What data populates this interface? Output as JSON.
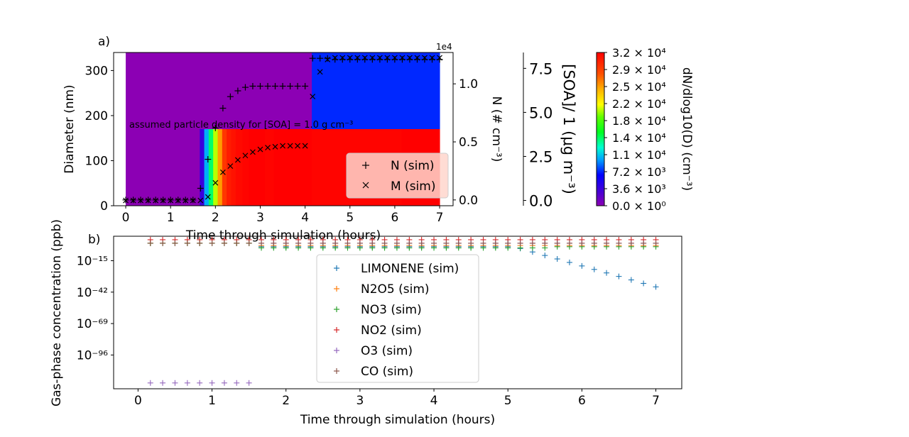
{
  "chart_data": [
    {
      "type": "heatmap",
      "panel_label": "a)",
      "xlabel": "Time through simulation (hours)",
      "xlim": [
        -0.27,
        7.3
      ],
      "xticks": [
        "0",
        "1",
        "2",
        "3",
        "4",
        "5",
        "6",
        "7"
      ],
      "left_axis": {
        "label": "Diameter (nm)",
        "ylim": [
          0,
          340
        ],
        "ticks": [
          "0",
          "100",
          "200",
          "300"
        ]
      },
      "right_axis_N": {
        "label": "N (# cm⁻³)",
        "offset_text": "1e4",
        "ticks": [
          "0.0",
          "0.5",
          "1.0"
        ],
        "ylim_1e4": [
          -0.05,
          1.27
        ]
      },
      "right_axis_SOA": {
        "label": "[SOA]/ 1 (μg m⁻³)",
        "ticks": [
          "0.0",
          "2.5",
          "5.0",
          "7.5"
        ],
        "ylim": [
          -0.3,
          8.4
        ]
      },
      "colorbar": {
        "label": "dN/dlog10(D) (cm⁻³)",
        "ticks": [
          "3.2 × 10⁴",
          "2.9 × 10⁴",
          "2.5 × 10⁴",
          "2.2 × 10⁴",
          "1.8 × 10⁴",
          "1.4 × 10⁴",
          "1.1 × 10⁴",
          "7.2 × 10³",
          "3.6 × 10³",
          "0.0 × 10⁰"
        ],
        "range": [
          0,
          32000
        ]
      },
      "annotation": "assumed particle density for [SOA] = 1.0 g cm⁻³",
      "heatmap_bins": {
        "time_edges": [
          0,
          1.65,
          1.75,
          1.85,
          1.95,
          2.05,
          2.15,
          2.25,
          2.35,
          2.45,
          2.6,
          2.75,
          2.9,
          3.1,
          3.3,
          3.5,
          4.15,
          6.15,
          7.0
        ],
        "diameter_edges_nm": [
          0,
          170,
          340
        ],
        "lower_band_level": [
          0,
          3600,
          10000,
          14000,
          20000,
          25000,
          29000,
          30500,
          31000,
          31500,
          31800,
          32000,
          32000,
          31800,
          32000,
          32000,
          31800,
          32000
        ],
        "upper_band_level": [
          0,
          0,
          0,
          0,
          0,
          0,
          0,
          0,
          0,
          0,
          0,
          0,
          0,
          0,
          0,
          0,
          7200,
          7200
        ]
      },
      "series": [
        {
          "name": "N (sim)",
          "marker": "+",
          "axis": "N_1e4",
          "x": [
            0,
            0.167,
            0.333,
            0.5,
            0.667,
            0.833,
            1,
            1.167,
            1.333,
            1.5,
            1.667,
            1.833,
            2,
            2.167,
            2.333,
            2.5,
            2.667,
            2.833,
            3,
            3.167,
            3.333,
            3.5,
            3.667,
            3.833,
            4,
            4.167,
            4.333,
            4.5,
            4.667,
            4.833,
            5,
            5.167,
            5.333,
            5.5,
            5.667,
            5.833,
            6,
            6.167,
            6.333,
            6.5,
            6.667,
            6.833,
            7
          ],
          "values": [
            0,
            0,
            0,
            0,
            0,
            0,
            0,
            0,
            0,
            0,
            0.1,
            0.35,
            0.62,
            0.79,
            0.89,
            0.94,
            0.97,
            0.98,
            0.98,
            0.98,
            0.98,
            0.98,
            0.98,
            0.98,
            0.98,
            1.22,
            1.22,
            1.22,
            1.21,
            1.21,
            1.21,
            1.21,
            1.21,
            1.21,
            1.21,
            1.21,
            1.21,
            1.21,
            1.21,
            1.21,
            1.21,
            1.21,
            1.21
          ]
        },
        {
          "name": "M (sim)",
          "marker": "x",
          "axis": "SOA",
          "x": [
            0,
            0.167,
            0.333,
            0.5,
            0.667,
            0.833,
            1,
            1.167,
            1.333,
            1.5,
            1.667,
            1.833,
            2,
            2.167,
            2.333,
            2.5,
            2.667,
            2.833,
            3,
            3.167,
            3.333,
            3.5,
            3.667,
            3.833,
            4,
            4.167,
            4.333,
            4.5,
            4.667,
            4.833,
            5,
            5.167,
            5.333,
            5.5,
            5.667,
            5.833,
            6,
            6.167,
            6.333,
            6.5,
            6.667,
            6.833,
            7
          ],
          "values": [
            0,
            0,
            0,
            0,
            0,
            0,
            0,
            0,
            0,
            0,
            0,
            0.2,
            1.0,
            1.6,
            1.95,
            2.3,
            2.55,
            2.75,
            2.9,
            3.0,
            3.05,
            3.1,
            3.1,
            3.1,
            3.1,
            5.9,
            7.3,
            8.0,
            8.1,
            8.1,
            8.1,
            8.1,
            8.1,
            8.1,
            8.1,
            8.1,
            8.1,
            8.1,
            8.1,
            8.1,
            8.1,
            8.1,
            8.1
          ]
        }
      ],
      "legend": {
        "placement": "lower right",
        "entries": [
          "N (sim)",
          "M (sim)"
        ]
      }
    },
    {
      "type": "scatter",
      "panel_label": "b)",
      "xlabel": "Time through simulation (hours)",
      "ylabel": "Gas-phase concentration (ppb)",
      "xlim": [
        -0.33,
        7.35
      ],
      "xticks": [
        "0",
        "1",
        "2",
        "3",
        "4",
        "5",
        "6",
        "7"
      ],
      "yscale": "log",
      "yticks": [
        "10⁻¹⁵",
        "10⁻⁴²",
        "10⁻⁶⁹",
        "10⁻⁹⁶"
      ],
      "ylim_log10": [
        -125,
        6
      ],
      "legend": {
        "placement": "center",
        "entries": [
          "LIMONENE (sim)",
          "N2O5 (sim)",
          "NO3 (sim)",
          "NO2 (sim)",
          "O3 (sim)",
          "CO (sim)"
        ]
      },
      "series": [
        {
          "name": "LIMONENE (sim)",
          "color": "#1f77b4",
          "x": [
            0.167,
            0.333,
            0.5,
            0.667,
            0.833,
            1,
            1.167,
            1.333,
            1.5,
            1.667,
            1.833,
            2,
            2.167,
            2.333,
            2.5,
            2.667,
            2.833,
            3,
            3.167,
            3.333,
            3.5,
            3.667,
            3.833,
            4,
            4.167,
            4.333,
            4.5,
            4.667,
            4.833,
            5,
            5.167,
            5.333,
            5.5,
            5.667,
            5.833,
            6,
            6.167,
            6.333,
            6.5,
            6.667,
            6.833,
            7
          ],
          "log10_values": [
            0,
            0,
            0,
            0,
            0,
            0,
            0,
            0,
            0,
            -3,
            -3,
            -3,
            -3,
            -3,
            -3,
            -3,
            -3,
            -3,
            -3,
            -3,
            -3,
            -3,
            -3,
            -3,
            -3,
            -3,
            -3,
            -3,
            -3,
            -3,
            -4.5,
            -7.5,
            -10.5,
            -13.5,
            -16.5,
            -19.5,
            -22.5,
            -25.5,
            -28.5,
            -31.5,
            -34.5,
            -37.5
          ]
        },
        {
          "name": "N2O5 (sim)",
          "color": "#ff7f0e",
          "x": [
            0.167,
            0.333,
            0.5,
            0.667,
            0.833,
            1,
            1.167,
            1.333,
            1.5,
            1.667,
            1.833,
            2,
            2.167,
            2.333,
            2.5,
            2.667,
            2.833,
            3,
            3.167,
            3.333,
            3.5,
            3.667,
            3.833,
            4,
            4.167,
            4.333,
            4.5,
            4.667,
            4.833,
            5,
            5.167,
            5.333,
            5.5,
            5.667,
            5.833,
            6,
            6.167,
            6.333,
            6.5,
            6.667,
            6.833,
            7
          ],
          "log10_values": [
            0,
            0,
            0,
            0,
            0,
            0,
            0,
            0,
            0,
            -2,
            -2,
            -2,
            -2,
            -2,
            -2,
            -2,
            -2,
            -2,
            -2,
            -2,
            -2,
            -2,
            -2,
            -2,
            -2,
            -2,
            -2,
            -2,
            -2,
            -2,
            -2,
            -2,
            -2,
            -2,
            -2,
            -2,
            -2,
            -2,
            -2,
            -2,
            -2,
            -2
          ]
        },
        {
          "name": "NO3 (sim)",
          "color": "#2ca02c",
          "x": [
            0.167,
            0.333,
            0.5,
            0.667,
            0.833,
            1,
            1.167,
            1.333,
            1.5,
            1.667,
            1.833,
            2,
            2.167,
            2.333,
            2.5,
            2.667,
            2.833,
            3,
            3.167,
            3.333,
            3.5,
            3.667,
            3.833,
            4,
            4.167,
            4.333,
            4.5,
            4.667,
            4.833,
            5,
            5.167,
            5.333,
            5.5,
            5.667,
            5.833,
            6,
            6.167,
            6.333,
            6.5,
            6.667,
            6.833,
            7
          ],
          "log10_values": [
            0,
            0,
            0,
            0,
            0,
            0,
            0,
            0,
            0,
            -4,
            -4,
            -4,
            -4,
            -4,
            -4,
            -4,
            -4,
            -4,
            -4,
            -4,
            -4,
            -4,
            -4,
            -4,
            -4,
            -4,
            -4,
            -4,
            -4,
            -4,
            -4,
            -4,
            -4,
            -3,
            -3,
            -3,
            -3,
            -3,
            -3,
            -3,
            -3,
            -3
          ]
        },
        {
          "name": "NO2 (sim)",
          "color": "#d62728",
          "x": [
            0.167,
            0.333,
            0.5,
            0.667,
            0.833,
            1,
            1.167,
            1.333,
            1.5,
            1.667,
            1.833,
            2,
            2.167,
            2.333,
            2.5,
            2.667,
            2.833,
            3,
            3.167,
            3.333,
            3.5,
            3.667,
            3.833,
            4,
            4.167,
            4.333,
            4.5,
            4.667,
            4.833,
            5,
            5.167,
            5.333,
            5.5,
            5.667,
            5.833,
            6,
            6.167,
            6.333,
            6.5,
            6.667,
            6.833,
            7
          ],
          "log10_values": [
            3,
            3,
            3,
            3,
            3,
            3,
            3,
            3,
            3,
            3,
            3,
            3,
            3,
            3,
            3,
            3,
            3,
            3,
            3,
            3,
            3,
            3,
            3,
            3,
            3,
            3,
            3,
            3,
            3,
            3,
            3,
            3,
            3,
            3,
            3,
            3,
            3,
            3,
            3,
            3,
            3,
            3
          ]
        },
        {
          "name": "O3 (sim)",
          "color": "#9467bd",
          "x": [
            0.167,
            0.333,
            0.5,
            0.667,
            0.833,
            1,
            1.167,
            1.333,
            1.5,
            1.667,
            1.833,
            2,
            2.167,
            2.333,
            2.5,
            2.667,
            2.833,
            3,
            3.167,
            3.333,
            3.5,
            3.667,
            3.833,
            4,
            4.167,
            4.333,
            4.5,
            4.667,
            4.833,
            5,
            5.167,
            5.333,
            5.5,
            5.667,
            5.833,
            6,
            6.167,
            6.333,
            6.5,
            6.667,
            6.833,
            7
          ],
          "log10_values": [
            -120,
            -120,
            -120,
            -120,
            -120,
            -120,
            -120,
            -120,
            -120,
            0,
            0,
            0,
            0,
            0,
            0,
            0,
            0,
            0,
            0,
            0,
            0,
            0,
            0,
            0,
            0,
            0,
            0,
            0,
            0,
            0,
            0,
            0,
            0,
            0,
            0,
            0,
            0,
            0,
            0,
            0,
            0,
            0
          ]
        },
        {
          "name": "CO (sim)",
          "color": "#8c564b",
          "x": [
            0.167,
            0.333,
            0.5,
            0.667,
            0.833,
            1,
            1.167,
            1.333,
            1.5,
            1.667,
            1.833,
            2,
            2.167,
            2.333,
            2.5,
            2.667,
            2.833,
            3,
            3.167,
            3.333,
            3.5,
            3.667,
            3.833,
            4,
            4.167,
            4.333,
            4.5,
            4.667,
            4.833,
            5,
            5.167,
            5.333,
            5.5,
            5.667,
            5.833,
            6,
            6.167,
            6.333,
            6.5,
            6.667,
            6.833,
            7
          ],
          "log10_values": [
            0,
            0,
            0,
            0,
            0,
            0,
            0,
            0,
            0,
            0,
            0,
            0,
            0,
            0,
            0,
            0,
            0,
            0,
            0,
            0,
            0,
            0,
            0,
            0,
            0,
            0,
            0,
            0,
            0,
            0,
            0,
            0,
            0,
            0,
            0,
            0,
            0,
            0,
            0,
            0,
            0,
            0
          ]
        }
      ]
    }
  ]
}
